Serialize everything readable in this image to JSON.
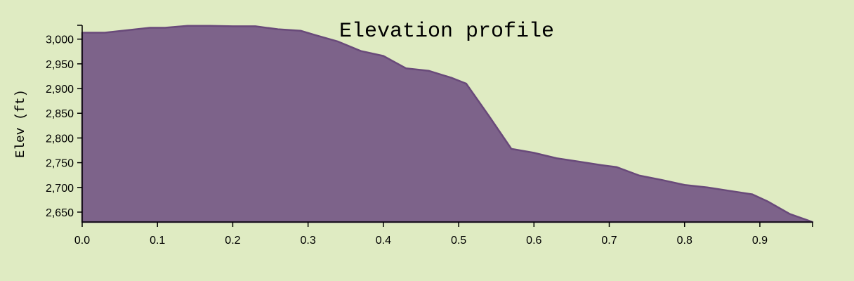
{
  "chart_data": {
    "type": "area",
    "title": "Elevation profile",
    "xlabel": "",
    "ylabel": "Elev (ft)",
    "xlim": [
      0.0,
      0.97
    ],
    "ylim": [
      2630,
      3028
    ],
    "x_ticks": [
      0.0,
      0.1,
      0.2,
      0.3,
      0.4,
      0.5,
      0.6,
      0.7,
      0.8,
      0.9
    ],
    "x_tick_labels": [
      "0.0",
      "0.1",
      "0.2",
      "0.3",
      "0.4",
      "0.5",
      "0.6",
      "0.7",
      "0.8",
      "0.9"
    ],
    "y_ticks": [
      2650,
      2700,
      2750,
      2800,
      2850,
      2900,
      2950,
      3000
    ],
    "y_tick_labels": [
      "2,650",
      "2,700",
      "2,750",
      "2,800",
      "2,850",
      "2,900",
      "2,950",
      "3,000"
    ],
    "grid": false,
    "colors": {
      "fill": "#7d638a",
      "stroke": "#694a7a",
      "background": "#dfebc2"
    },
    "series": [
      {
        "x": [
          0.0,
          0.03,
          0.06,
          0.09,
          0.11,
          0.14,
          0.17,
          0.2,
          0.23,
          0.26,
          0.29,
          0.31,
          0.34,
          0.37,
          0.4,
          0.43,
          0.46,
          0.49,
          0.51,
          0.54,
          0.57,
          0.6,
          0.63,
          0.66,
          0.69,
          0.71,
          0.74,
          0.77,
          0.8,
          0.83,
          0.86,
          0.89,
          0.91,
          0.94,
          0.97
        ],
        "y": [
          3013,
          3013,
          3018,
          3023,
          3023,
          3027,
          3027,
          3026,
          3026,
          3020,
          3017,
          3008,
          2995,
          2976,
          2966,
          2941,
          2936,
          2922,
          2910,
          2845,
          2778,
          2770,
          2759,
          2752,
          2745,
          2741,
          2724,
          2715,
          2705,
          2700,
          2693,
          2686,
          2672,
          2646,
          2630
        ]
      }
    ]
  }
}
